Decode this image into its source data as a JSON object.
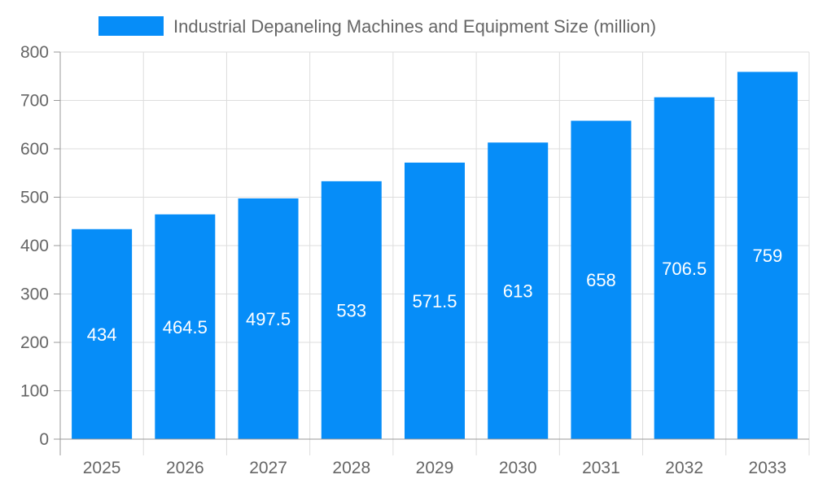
{
  "chart_data": {
    "type": "bar",
    "title": "",
    "xlabel": "",
    "ylabel": "",
    "categories": [
      "2025",
      "2026",
      "2027",
      "2028",
      "2029",
      "2030",
      "2031",
      "2032",
      "2033"
    ],
    "series": [
      {
        "name": "Industrial Depaneling Machines and Equipment Size (million)",
        "values": [
          434,
          464.5,
          497.5,
          533,
          571.5,
          613,
          658,
          706.5,
          759
        ]
      }
    ],
    "ylim": [
      0,
      800
    ],
    "yticks": [
      0,
      100,
      200,
      300,
      400,
      500,
      600,
      700,
      800
    ],
    "grid": true,
    "legend": "top-center",
    "data_labels": true,
    "colors": {
      "bar": "#068df8",
      "grid": "#dddddd",
      "axis": "#999999",
      "text": "#666666",
      "label": "#ffffff"
    }
  }
}
